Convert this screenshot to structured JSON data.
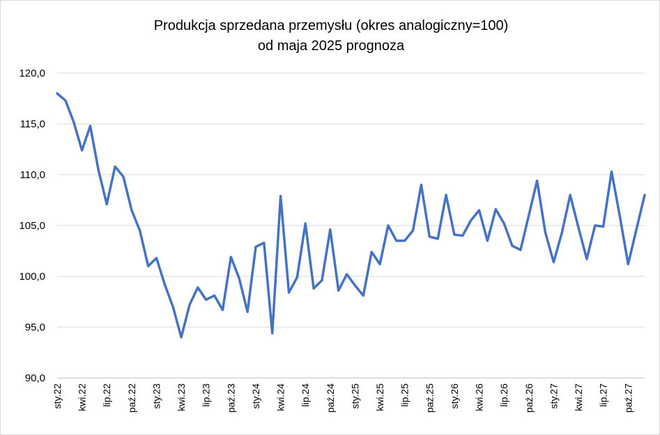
{
  "chart_data": {
    "type": "line",
    "title_line1": "Produkcja sprzedana przemysłu (okres analogiczny=100)",
    "title_line2": "od maja 2025 prognoza",
    "xlabel": "",
    "ylabel": "",
    "ylim": [
      90,
      120
    ],
    "yticks": [
      "120,0",
      "115,0",
      "110,0",
      "105,0",
      "100,0",
      "95,0",
      "90,0"
    ],
    "ytick_values": [
      120,
      115,
      110,
      105,
      100,
      95,
      90
    ],
    "grid": true,
    "legend": "none",
    "line_color": "#4472C4",
    "grid_color": "#d9d9d9",
    "x": [
      "sty.22",
      "lut.22",
      "mar.22",
      "kwi.22",
      "maj.22",
      "cze.22",
      "lip.22",
      "sie.22",
      "wrz.22",
      "paź.22",
      "lis.22",
      "gru.22",
      "sty.23",
      "lut.23",
      "mar.23",
      "kwi.23",
      "maj.23",
      "cze.23",
      "lip.23",
      "sie.23",
      "wrz.23",
      "paź.23",
      "lis.23",
      "gru.23",
      "sty.24",
      "lut.24",
      "mar.24",
      "kwi.24",
      "maj.24",
      "cze.24",
      "lip.24",
      "sie.24",
      "wrz.24",
      "paź.24",
      "lis.24",
      "gru.24",
      "sty.25",
      "lut.25",
      "mar.25",
      "kwi.25",
      "maj.25",
      "cze.25",
      "lip.25",
      "sie.25",
      "wrz.25",
      "paź.25",
      "lis.25",
      "gru.25",
      "sty.26",
      "lut.26",
      "mar.26",
      "kwi.26",
      "maj.26",
      "cze.26",
      "lip.26",
      "sie.26",
      "wrz.26",
      "paź.26",
      "lis.26",
      "gru.26",
      "sty.27",
      "lut.27",
      "mar.27",
      "kwi.27",
      "maj.27",
      "cze.27",
      "lip.27",
      "sie.27",
      "wrz.27",
      "paź.27",
      "lis.27",
      "gru.27"
    ],
    "shown_tick_labels": [
      "sty.22",
      "kwi.22",
      "lip.22",
      "paź.22",
      "sty.23",
      "kwi.23",
      "lip.23",
      "paź.23",
      "sty.24",
      "kwi.24",
      "lip.24",
      "paź.24",
      "sty.25",
      "kwi.25",
      "lip.25",
      "paź.25",
      "sty.26",
      "kwi.26",
      "lip.26",
      "paź.26",
      "sty.27",
      "kwi.27",
      "lip.27",
      "paź.27"
    ],
    "series": [
      {
        "values": [
          118.0,
          117.3,
          115.2,
          112.4,
          114.8,
          110.4,
          107.1,
          110.8,
          109.8,
          106.5,
          104.5,
          101.0,
          101.8,
          99.2,
          97.0,
          94.0,
          97.2,
          98.9,
          97.7,
          98.1,
          96.7,
          101.9,
          99.8,
          96.5,
          102.9,
          103.3,
          94.4,
          107.9,
          98.4,
          99.9,
          105.2,
          98.8,
          99.6,
          104.6,
          98.6,
          100.2,
          99.1,
          98.1,
          102.4,
          101.2,
          105.0,
          103.5,
          103.5,
          104.5,
          109.0,
          103.9,
          103.7,
          108.0,
          104.1,
          104.0,
          105.5,
          106.5,
          103.5,
          106.6,
          105.2,
          103.0,
          102.6,
          106.0,
          109.4,
          104.3,
          101.4,
          104.3,
          108.0,
          104.8,
          101.7,
          105.0,
          104.9,
          110.3,
          105.9,
          101.2,
          104.6,
          108.0
        ]
      }
    ]
  }
}
